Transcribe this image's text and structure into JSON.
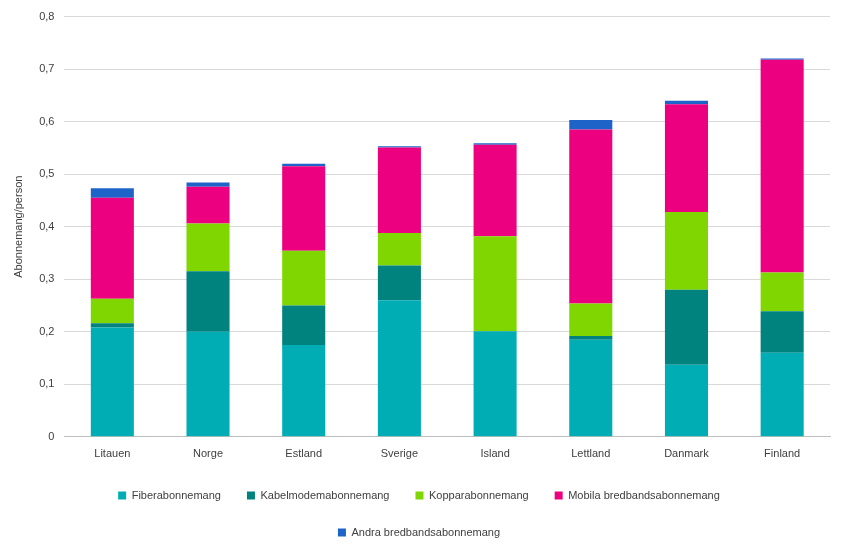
{
  "chart_data": {
    "type": "bar",
    "stacked": true,
    "y_label": "Abonnemang/person",
    "categories": [
      "Litauen",
      "Norge",
      "Estland",
      "Sverige",
      "Island",
      "Lettland",
      "Danmark",
      "Finland"
    ],
    "series": [
      {
        "name": "Fiberabonnemang",
        "color": "#00adb5",
        "values": [
          0.208,
          0.2,
          0.175,
          0.26,
          0.201,
          0.185,
          0.137,
          0.16
        ]
      },
      {
        "name": "Kabelmodemabonnemang",
        "color": "#00827f",
        "values": [
          0.008,
          0.115,
          0.075,
          0.066,
          0.0,
          0.007,
          0.143,
          0.079
        ]
      },
      {
        "name": "Kopparabonnemang",
        "color": "#80d600",
        "values": [
          0.047,
          0.091,
          0.104,
          0.062,
          0.181,
          0.062,
          0.148,
          0.074
        ]
      },
      {
        "name": "Mobila bredbandsabonnemang",
        "color": "#ec0080",
        "values": [
          0.192,
          0.07,
          0.161,
          0.163,
          0.174,
          0.331,
          0.205,
          0.405
        ]
      },
      {
        "name": "Andra bredbandsabonnemang",
        "color": "#1e64c8",
        "values": [
          0.018,
          0.008,
          0.005,
          0.002,
          0.003,
          0.018,
          0.007,
          0.002
        ]
      }
    ],
    "ylim": [
      0,
      0.8
    ],
    "yticks": [
      0,
      {
        "value": 0.1,
        "label": "0,1"
      },
      {
        "value": 0.2,
        "label": "0,2"
      },
      {
        "value": 0.3,
        "label": "0,3"
      },
      {
        "value": 0.4,
        "label": "0,4"
      },
      {
        "value": 0.5,
        "label": "0,5"
      },
      {
        "value": 0.6,
        "label": "0,6"
      },
      {
        "value": 0.7,
        "label": "0,7"
      },
      {
        "value": 0.8,
        "label": "0,8"
      }
    ],
    "grid": true,
    "legend": "bottom"
  }
}
